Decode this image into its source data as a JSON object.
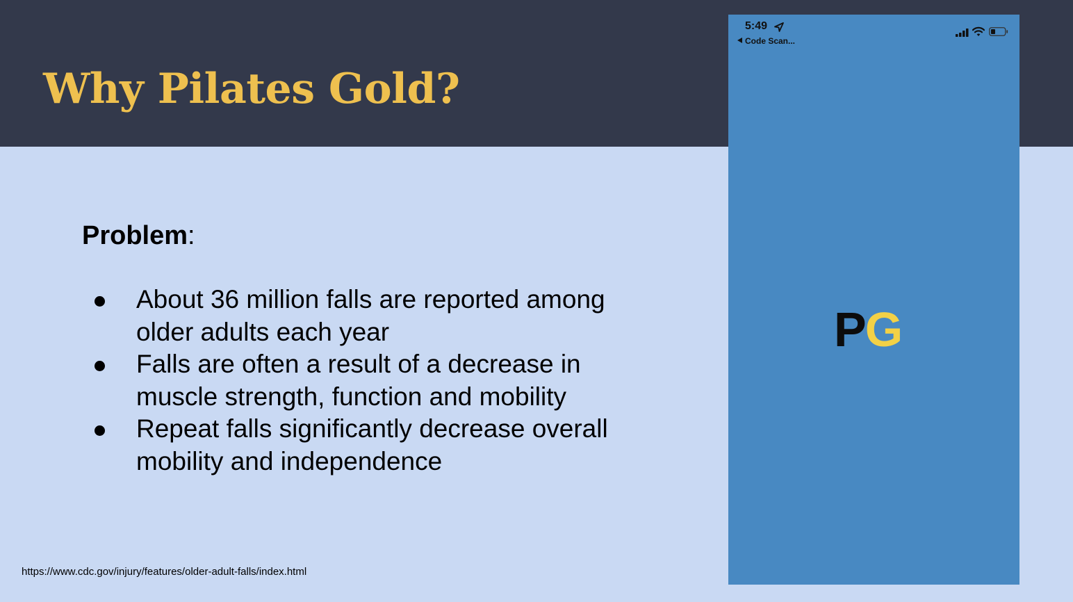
{
  "slide": {
    "title": "Why Pilates Gold?",
    "problem_label": "Problem",
    "problem_colon": ":",
    "bullets": [
      "About 36 million falls are reported among older adults each year",
      "Falls are often a result of a decrease in muscle strength, function and mobility",
      "Repeat falls significantly decrease overall mobility and independence"
    ],
    "source": "https://www.cdc.gov/injury/features/older-adult-falls/index.html"
  },
  "phone": {
    "status_time": "5:49",
    "back_label": "Code Scan...",
    "logo_p": "P",
    "logo_g": "G",
    "icons": [
      "location-arrow-icon",
      "signal-bars-icon",
      "wifi-icon",
      "battery-icon",
      "back-arrow-icon"
    ]
  },
  "colors": {
    "header_bg": "#33394b",
    "title_gold": "#eec04f",
    "slide_bg": "#c9d9f3",
    "phone_bg": "#4889c2",
    "logo_yellow": "#f3d146"
  }
}
